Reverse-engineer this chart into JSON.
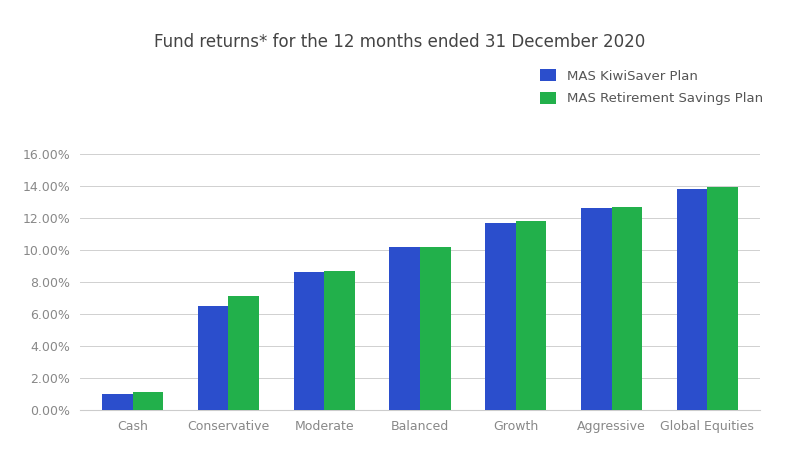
{
  "title": "Fund returns* for the 12 months ended 31 December 2020",
  "categories": [
    "Cash",
    "Conservative",
    "Moderate",
    "Balanced",
    "Growth",
    "Aggressive",
    "Global Equities"
  ],
  "series": [
    {
      "label": "MAS KiwiSaver Plan",
      "color": "#2B4ECC",
      "values": [
        0.01,
        0.065,
        0.086,
        0.102,
        0.117,
        0.126,
        0.138
      ]
    },
    {
      "label": "MAS Retirement Savings Plan",
      "color": "#22B04B",
      "values": [
        0.011,
        0.071,
        0.087,
        0.102,
        0.118,
        0.127,
        0.139
      ]
    }
  ],
  "ylim": [
    0,
    0.16
  ],
  "yticks": [
    0.0,
    0.02,
    0.04,
    0.06,
    0.08,
    0.1,
    0.12,
    0.14,
    0.16
  ],
  "outer_bg": "#f0f0f0",
  "inner_bg": "#ffffff",
  "grid_color": "#d0d0d0",
  "bar_width": 0.32,
  "title_fontsize": 12,
  "tick_fontsize": 9,
  "legend_fontsize": 9.5,
  "tick_color": "#888888",
  "spine_color": "#cccccc"
}
